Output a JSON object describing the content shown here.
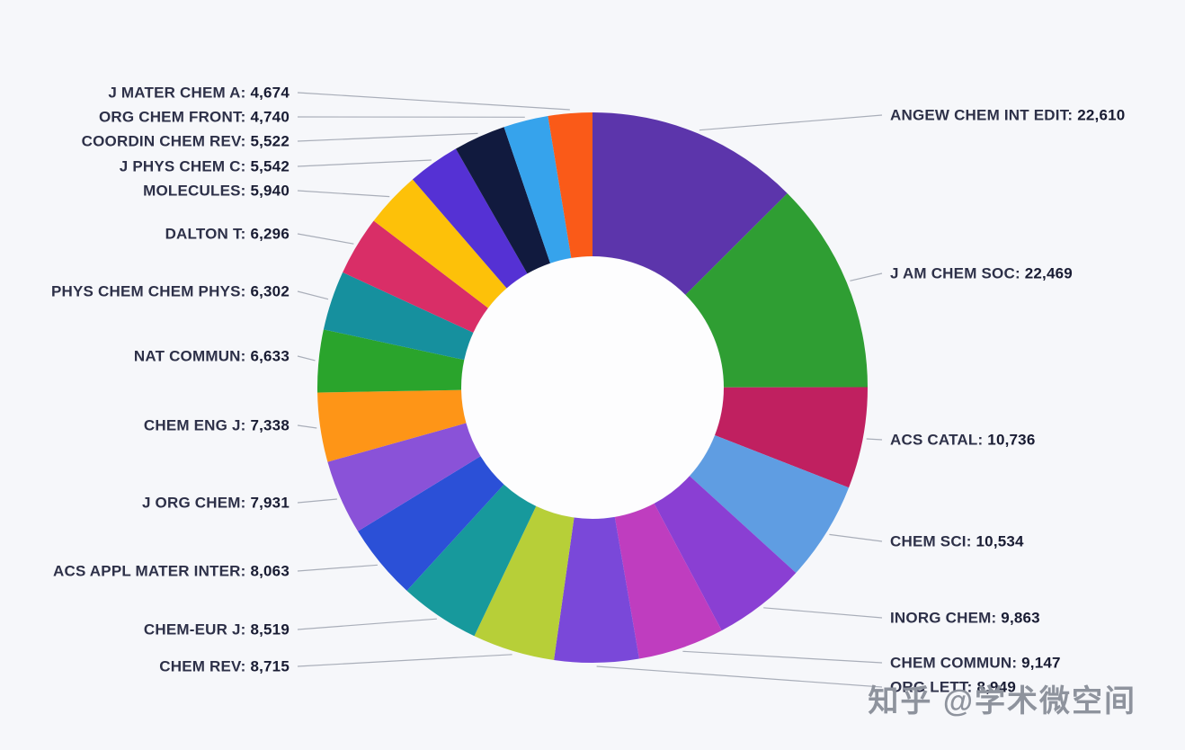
{
  "chart_data": {
    "type": "pie",
    "subtype": "donut",
    "title": "",
    "legend_position": "none",
    "labels": "outside with leader lines, clockwise from 12 o'clock in descending value order",
    "separator": ": ",
    "segments": [
      {
        "label": "ANGEW CHEM INT EDIT",
        "value": 22610,
        "display": "22,610",
        "color": "#5c35ab"
      },
      {
        "label": "J AM CHEM SOC",
        "value": 22469,
        "display": "22,469",
        "color": "#2f9e33"
      },
      {
        "label": "ACS CATAL",
        "value": 10736,
        "display": "10,736",
        "color": "#c02060"
      },
      {
        "label": "CHEM SCI",
        "value": 10534,
        "display": "10,534",
        "color": "#5f9de2"
      },
      {
        "label": "INORG CHEM",
        "value": 9863,
        "display": "9,863",
        "color": "#8a3fd3"
      },
      {
        "label": "CHEM COMMUN",
        "value": 9147,
        "display": "9,147",
        "color": "#bf3dbf"
      },
      {
        "label": "ORG LETT",
        "value": 8949,
        "display": "8,949",
        "color": "#7a48d9"
      },
      {
        "label": "CHEM REV",
        "value": 8715,
        "display": "8,715",
        "color": "#b7cf38"
      },
      {
        "label": "CHEM-EUR J",
        "value": 8519,
        "display": "8,519",
        "color": "#17999c"
      },
      {
        "label": "ACS APPL MATER INTER",
        "value": 8063,
        "display": "8,063",
        "color": "#2b50d7"
      },
      {
        "label": "J ORG CHEM",
        "value": 7931,
        "display": "7,931",
        "color": "#8a52d8"
      },
      {
        "label": "CHEM ENG J",
        "value": 7338,
        "display": "7,338",
        "color": "#fe9517"
      },
      {
        "label": "NAT COMMUN",
        "value": 6633,
        "display": "6,633",
        "color": "#2aa42c"
      },
      {
        "label": "PHYS CHEM CHEM PHYS",
        "value": 6302,
        "display": "6,302",
        "color": "#16909e"
      },
      {
        "label": "DALTON T",
        "value": 6296,
        "display": "6,296",
        "color": "#d92e67"
      },
      {
        "label": "MOLECULES",
        "value": 5940,
        "display": "5,940",
        "color": "#fdc109"
      },
      {
        "label": "J PHYS CHEM C",
        "value": 5542,
        "display": "5,542",
        "color": "#5531d4"
      },
      {
        "label": "COORDIN CHEM REV",
        "value": 5522,
        "display": "5,522",
        "color": "#111a3e"
      },
      {
        "label": "ORG CHEM FRONT",
        "value": 4740,
        "display": "4,740",
        "color": "#36a3ec"
      },
      {
        "label": "J MATER CHEM A",
        "value": 4674,
        "display": "4,674",
        "color": "#fa5a18"
      }
    ]
  },
  "watermark": {
    "text": "知乎 @学术微空间"
  }
}
